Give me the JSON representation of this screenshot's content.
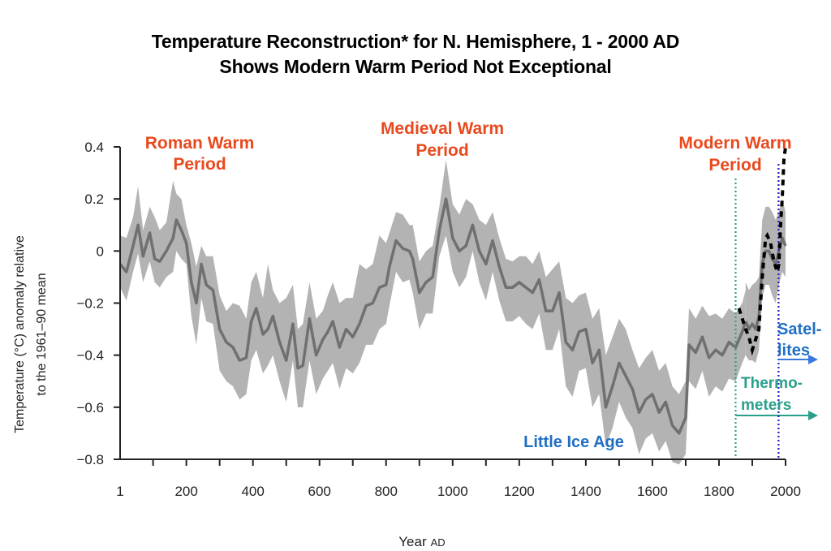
{
  "title_line1": "Temperature Reconstruction* for N. Hemisphere, 1 - 2000 AD",
  "title_line2": "Shows Modern Warm Period Not Exceptional",
  "colors": {
    "band": "#b3b3b3",
    "line": "#707070",
    "instrumental": "#000000",
    "warm_label": "#e8491d",
    "cold_label": "#1f6fc5",
    "thermometers": "#2aa08a",
    "satellites": "#1a1acc",
    "satellites_arrow": "#3a78e0"
  },
  "chart_data": {
    "type": "line",
    "title": "Temperature Reconstruction* for N. Hemisphere, 1 - 2000 AD",
    "subtitle": "Shows Modern Warm Period Not Exceptional",
    "xlabel": "Year",
    "xlabel_suffix": "AD",
    "ylabel_line1": "Temperature (°C) anomaly relative",
    "ylabel_line2": "to the 1961–90 mean",
    "xlim": [
      1,
      2000
    ],
    "ylim": [
      -0.8,
      0.4
    ],
    "x_tick_labels": [
      "1",
      "200",
      "400",
      "600",
      "800",
      "1000",
      "1200",
      "1400",
      "1600",
      "1800",
      "2000"
    ],
    "x_tick_values": [
      1,
      200,
      400,
      600,
      800,
      1000,
      1200,
      1400,
      1600,
      1800,
      2000
    ],
    "x_minor_tick_step": 100,
    "y_tick_labels": [
      "0.4",
      "0.2",
      "0",
      "−0.2",
      "−0.4",
      "−0.6",
      "−0.8"
    ],
    "y_tick_values": [
      0.4,
      0.2,
      0,
      -0.2,
      -0.4,
      -0.6,
      -0.8
    ],
    "grid": false,
    "series": [
      {
        "name": "Reconstruction",
        "style": "solid",
        "x": [
          1,
          20,
          40,
          55,
          70,
          90,
          105,
          120,
          140,
          160,
          170,
          185,
          200,
          215,
          230,
          245,
          260,
          280,
          300,
          320,
          340,
          360,
          380,
          395,
          410,
          430,
          445,
          460,
          480,
          500,
          520,
          535,
          550,
          570,
          590,
          610,
          625,
          640,
          660,
          680,
          700,
          720,
          740,
          760,
          780,
          800,
          810,
          830,
          850,
          870,
          880,
          900,
          920,
          940,
          960,
          980,
          1000,
          1020,
          1040,
          1060,
          1080,
          1100,
          1120,
          1140,
          1160,
          1180,
          1200,
          1220,
          1240,
          1260,
          1280,
          1300,
          1320,
          1340,
          1360,
          1380,
          1400,
          1420,
          1440,
          1460,
          1480,
          1500,
          1520,
          1540,
          1560,
          1580,
          1600,
          1620,
          1640,
          1660,
          1680,
          1700,
          1710,
          1730,
          1750,
          1770,
          1790,
          1810,
          1830,
          1850,
          1870,
          1880
        ],
        "values": [
          -0.05,
          -0.08,
          0.02,
          0.1,
          -0.02,
          0.07,
          -0.03,
          -0.04,
          0.0,
          0.05,
          0.12,
          0.08,
          0.03,
          -0.12,
          -0.2,
          -0.05,
          -0.13,
          -0.15,
          -0.3,
          -0.35,
          -0.37,
          -0.42,
          -0.41,
          -0.27,
          -0.22,
          -0.32,
          -0.3,
          -0.25,
          -0.35,
          -0.42,
          -0.28,
          -0.45,
          -0.44,
          -0.26,
          -0.4,
          -0.34,
          -0.31,
          -0.27,
          -0.37,
          -0.3,
          -0.33,
          -0.28,
          -0.21,
          -0.2,
          -0.14,
          -0.13,
          -0.06,
          0.04,
          0.01,
          0.0,
          -0.03,
          -0.16,
          -0.12,
          -0.1,
          0.08,
          0.2,
          0.05,
          0.0,
          0.02,
          0.1,
          0.0,
          -0.05,
          0.04,
          -0.06,
          -0.14,
          -0.14,
          -0.12,
          -0.14,
          -0.16,
          -0.11,
          -0.23,
          -0.23,
          -0.16,
          -0.35,
          -0.38,
          -0.31,
          -0.3,
          -0.43,
          -0.38,
          -0.6,
          -0.52,
          -0.43,
          -0.48,
          -0.53,
          -0.62,
          -0.57,
          -0.55,
          -0.62,
          -0.58,
          -0.67,
          -0.7,
          -0.64,
          -0.36,
          -0.39,
          -0.33,
          -0.41,
          -0.38,
          -0.4,
          -0.35,
          -0.37,
          -0.31,
          -0.27
        ],
        "band_upper": [
          0.06,
          0.05,
          0.13,
          0.25,
          0.08,
          0.17,
          0.13,
          0.08,
          0.11,
          0.27,
          0.22,
          0.2,
          0.1,
          0.03,
          -0.06,
          0.02,
          -0.02,
          -0.02,
          -0.17,
          -0.23,
          -0.2,
          -0.21,
          -0.26,
          -0.12,
          -0.08,
          -0.18,
          -0.05,
          -0.15,
          -0.2,
          -0.18,
          -0.13,
          -0.3,
          -0.28,
          -0.12,
          -0.26,
          -0.23,
          -0.17,
          -0.12,
          -0.2,
          -0.18,
          -0.18,
          -0.05,
          -0.07,
          -0.05,
          0.06,
          0.03,
          0.07,
          0.15,
          0.14,
          0.1,
          0.1,
          -0.04,
          0.0,
          0.02,
          0.17,
          0.35,
          0.18,
          0.14,
          0.2,
          0.18,
          0.12,
          0.1,
          0.15,
          0.05,
          -0.03,
          -0.04,
          -0.02,
          -0.02,
          -0.05,
          0.0,
          -0.1,
          -0.07,
          -0.04,
          -0.18,
          -0.2,
          -0.17,
          -0.16,
          -0.26,
          -0.22,
          -0.4,
          -0.33,
          -0.26,
          -0.3,
          -0.38,
          -0.45,
          -0.41,
          -0.38,
          -0.46,
          -0.43,
          -0.52,
          -0.55,
          -0.5,
          -0.22,
          -0.26,
          -0.21,
          -0.25,
          -0.24,
          -0.26,
          -0.22,
          -0.24,
          -0.2,
          -0.15
        ],
        "band_lower": [
          -0.14,
          -0.19,
          -0.08,
          -0.01,
          -0.12,
          -0.04,
          -0.12,
          -0.14,
          -0.1,
          -0.08,
          0.0,
          -0.03,
          -0.05,
          -0.25,
          -0.36,
          -0.18,
          -0.27,
          -0.28,
          -0.46,
          -0.5,
          -0.52,
          -0.57,
          -0.55,
          -0.42,
          -0.38,
          -0.47,
          -0.44,
          -0.4,
          -0.5,
          -0.58,
          -0.42,
          -0.6,
          -0.6,
          -0.42,
          -0.55,
          -0.49,
          -0.46,
          -0.43,
          -0.53,
          -0.45,
          -0.47,
          -0.43,
          -0.36,
          -0.36,
          -0.3,
          -0.28,
          -0.21,
          -0.08,
          -0.12,
          -0.11,
          -0.16,
          -0.3,
          -0.24,
          -0.24,
          -0.02,
          0.06,
          -0.08,
          -0.14,
          -0.1,
          0.0,
          -0.12,
          -0.19,
          -0.08,
          -0.19,
          -0.27,
          -0.27,
          -0.25,
          -0.28,
          -0.3,
          -0.24,
          -0.38,
          -0.38,
          -0.3,
          -0.52,
          -0.56,
          -0.46,
          -0.45,
          -0.6,
          -0.55,
          -0.75,
          -0.68,
          -0.58,
          -0.64,
          -0.68,
          -0.78,
          -0.72,
          -0.7,
          -0.77,
          -0.73,
          -0.81,
          -0.82,
          -0.78,
          -0.5,
          -0.53,
          -0.46,
          -0.56,
          -0.52,
          -0.54,
          -0.49,
          -0.5,
          -0.43,
          -0.4
        ]
      },
      {
        "name": "Reconstruction (modern)",
        "style": "solid",
        "x": [
          1880,
          1890,
          1900,
          1910,
          1920,
          1930,
          1940,
          1950,
          1960,
          1970,
          1980,
          1990,
          2000
        ],
        "values": [
          -0.27,
          -0.3,
          -0.28,
          -0.3,
          -0.25,
          -0.05,
          0.0,
          0.0,
          -0.03,
          -0.05,
          0.0,
          0.05,
          0.02
        ],
        "band_upper": [
          -0.12,
          -0.15,
          -0.13,
          -0.12,
          -0.1,
          0.12,
          0.17,
          0.17,
          0.15,
          0.12,
          0.15,
          0.2,
          0.15
        ],
        "band_lower": [
          -0.4,
          -0.42,
          -0.42,
          -0.43,
          -0.38,
          -0.18,
          -0.13,
          -0.13,
          -0.17,
          -0.2,
          -0.13,
          -0.08,
          -0.1
        ]
      },
      {
        "name": "Instrumental record",
        "style": "dashed",
        "x": [
          1860,
          1870,
          1880,
          1890,
          1900,
          1910,
          1920,
          1930,
          1940,
          1945,
          1955,
          1965,
          1975,
          1980,
          1985,
          1990,
          1995,
          2000
        ],
        "values": [
          -0.22,
          -0.26,
          -0.3,
          -0.33,
          -0.38,
          -0.34,
          -0.3,
          -0.1,
          0.05,
          0.06,
          0.03,
          -0.04,
          -0.08,
          -0.05,
          0.1,
          0.2,
          0.35,
          0.4
        ]
      }
    ],
    "annotations": [
      {
        "text": "Roman Warm Period",
        "lines": [
          "Roman Warm",
          "Period"
        ],
        "x": 200,
        "y": 0.35,
        "color": "#e8491d"
      },
      {
        "text": "Medieval Warm Period",
        "lines": [
          "Medieval Warm",
          "Period"
        ],
        "x": 1000,
        "y": 0.38,
        "color": "#e8491d"
      },
      {
        "text": "Modern Warm Period",
        "lines": [
          "Modern Warm",
          "Period"
        ],
        "x": 1850,
        "y": 0.35,
        "color": "#e8491d"
      },
      {
        "text": "Little Ice Age",
        "lines": [
          "Little Ice Age"
        ],
        "x": 1450,
        "y": -0.75,
        "color": "#1f6fc5"
      },
      {
        "text": "Satellites",
        "lines": [
          "Satel-",
          "lites"
        ],
        "x": 1979,
        "y": -0.37,
        "color": "#1f6fc5"
      },
      {
        "text": "Thermometers",
        "lines": [
          "Thermo-",
          "meters"
        ],
        "x": 1850,
        "y": -0.52,
        "color": "#2aa08a"
      }
    ],
    "markers": [
      {
        "name": "Thermometers start",
        "x": 1850,
        "style": "dotted",
        "color": "#2aa08a",
        "arrow": true
      },
      {
        "name": "Satellites start",
        "x": 1979,
        "style": "dotted",
        "color": "#1a1acc",
        "arrow": true
      }
    ]
  }
}
